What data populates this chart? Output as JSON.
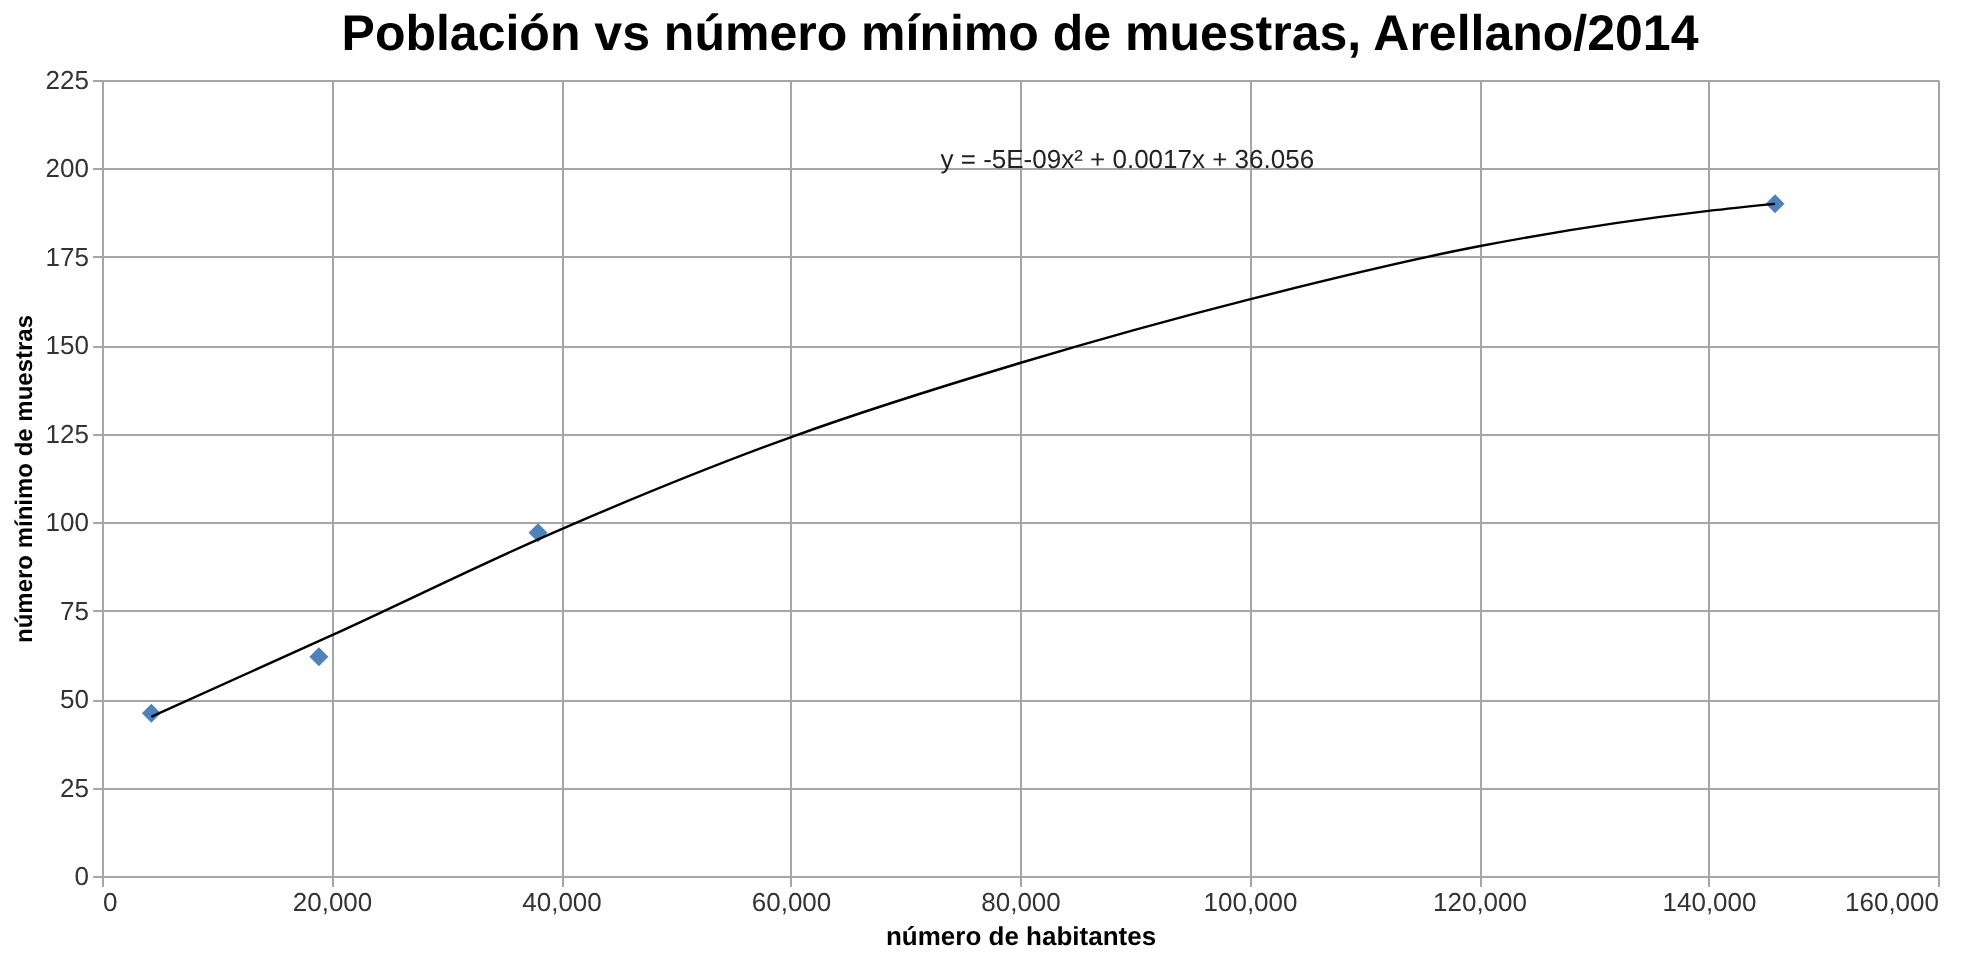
{
  "chart_data": {
    "type": "scatter",
    "title": "Población vs número mínimo de muestras, Arellano/2014",
    "xlabel": "número de habitantes",
    "ylabel": "número mínimo  de muestras",
    "series": [
      {
        "color": "#4f81bd",
        "marker": "diamond",
        "x": [
          4300,
          18900,
          38000,
          145800
        ],
        "values": [
          46,
          62,
          97,
          190
        ]
      },
      {
        "type": "line",
        "color": "#000000",
        "marker": "none",
        "x": [
          4300,
          20000,
          40000,
          60000,
          80000,
          100000,
          120000,
          140000,
          145800
        ],
        "values": [
          45,
          68,
          98,
          124,
          145,
          163,
          178,
          188,
          190
        ]
      }
    ],
    "annotations": [
      "y = -5E-09x² + 0.0017x + 36.056"
    ],
    "xlim": [
      0,
      160000
    ],
    "xticks": [
      {
        "value": 0,
        "label": "0"
      },
      {
        "value": 20000,
        "label": "20,000"
      },
      {
        "value": 40000,
        "label": "40,000"
      },
      {
        "value": 60000,
        "label": "60,000"
      },
      {
        "value": 80000,
        "label": "80,000"
      },
      {
        "value": 100000,
        "label": "100,000"
      },
      {
        "value": 120000,
        "label": "120,000"
      },
      {
        "value": 140000,
        "label": "140,000"
      },
      {
        "value": 160000,
        "label": "160,000"
      }
    ],
    "ylim": [
      0,
      225
    ],
    "yticks": [
      0,
      25,
      50,
      75,
      100,
      125,
      150,
      175,
      200,
      225
    ],
    "grid": true,
    "legend": false
  }
}
